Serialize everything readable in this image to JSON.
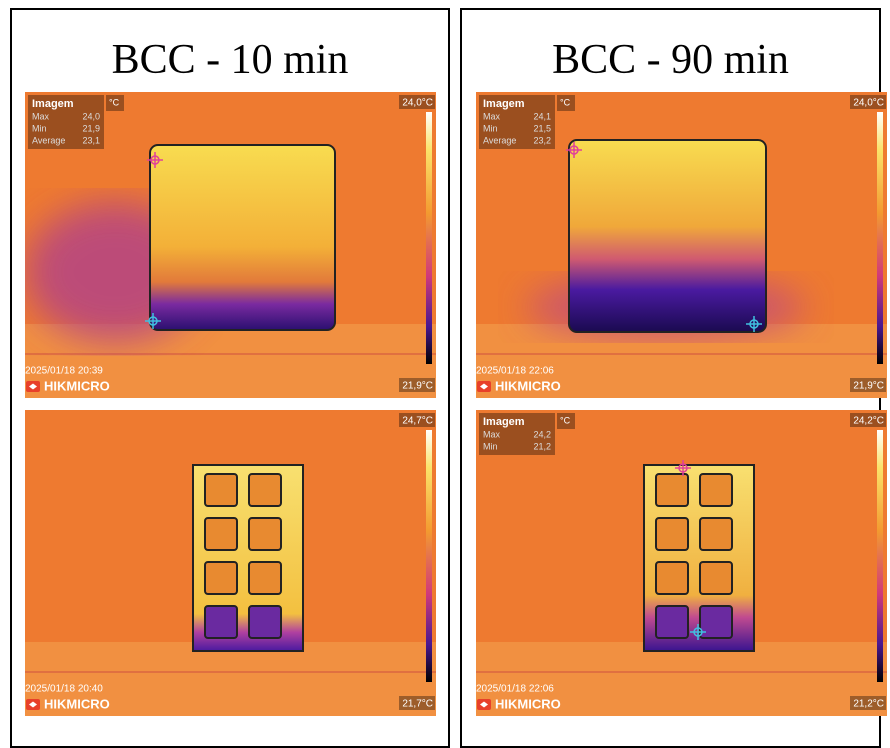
{
  "columns": [
    {
      "title": "BCC - 10 min",
      "images": [
        {
          "info": {
            "label": "Imagem",
            "unit": "°C",
            "rows": [
              {
                "name": "Max",
                "value": "24,0"
              },
              {
                "name": "Min",
                "value": "21,9"
              },
              {
                "name": "Average",
                "value": "23,1"
              }
            ]
          },
          "scale_max": "24,0°C",
          "scale_min": "21,9°C",
          "timestamp": "2025/01/18 20:39",
          "brand": "HIKMICRO"
        },
        {
          "scale_max": "24,7°C",
          "scale_min": "21,7°C",
          "timestamp": "2025/01/18 20:40",
          "brand": "HIKMICRO"
        }
      ]
    },
    {
      "title": "BCC - 90 min",
      "images": [
        {
          "info": {
            "label": "Imagem",
            "unit": "°C",
            "rows": [
              {
                "name": "Max",
                "value": "24,1"
              },
              {
                "name": "Min",
                "value": "21,5"
              },
              {
                "name": "Average",
                "value": "23,2"
              }
            ]
          },
          "scale_max": "24,0°C",
          "scale_min": "21,9°C",
          "timestamp": "2025/01/18 22:06",
          "brand": "HIKMICRO"
        },
        {
          "info": {
            "label": "Imagem",
            "unit": "°C",
            "rows": [
              {
                "name": "Max",
                "value": "24,2"
              },
              {
                "name": "Min",
                "value": "21,2"
              }
            ]
          },
          "scale_max": "24,2°C",
          "scale_min": "21,2°C",
          "timestamp": "2025/01/18 22:06",
          "brand": "HIKMICRO"
        }
      ]
    }
  ]
}
